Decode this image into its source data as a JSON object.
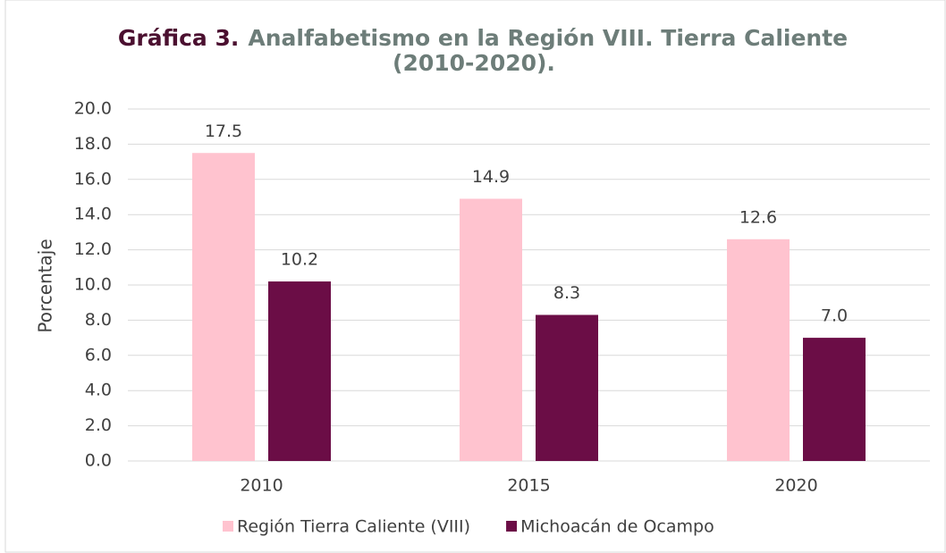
{
  "chart_data": {
    "type": "bar",
    "title_label": "Gráfica 3.",
    "title_lines": [
      "Analfabetismo  en la Región VIII. Tierra Caliente",
      "(2010-2020)."
    ],
    "ylabel": "Porcentaje",
    "categories": [
      "2010",
      "2015",
      "2020"
    ],
    "series": [
      {
        "name": "Región Tierra Caliente (VIII)",
        "color": "#ffc3cf",
        "values": [
          17.5,
          14.9,
          12.6
        ],
        "value_labels": [
          "17.5",
          "14.9",
          "12.6"
        ]
      },
      {
        "name": "Michoacán de Ocampo",
        "color": "#6b0d46",
        "values": [
          10.2,
          8.3,
          7.0
        ],
        "value_labels": [
          "10.2",
          "8.3",
          "7.0"
        ]
      }
    ],
    "ylim": [
      0,
      20
    ],
    "yticks": [
      {
        "value": 0,
        "label": "0.0"
      },
      {
        "value": 2,
        "label": "2.0"
      },
      {
        "value": 4,
        "label": "4.0"
      },
      {
        "value": 6,
        "label": "6.0"
      },
      {
        "value": 8,
        "label": "8.0"
      },
      {
        "value": 10,
        "label": "10.0"
      },
      {
        "value": 12,
        "label": "12.0"
      },
      {
        "value": 14,
        "label": "14.0"
      },
      {
        "value": 16,
        "label": "16.0"
      },
      {
        "value": 18,
        "label": "18.0"
      },
      {
        "value": 20,
        "label": "20.0"
      }
    ],
    "grid": true,
    "legend": "bottom"
  }
}
